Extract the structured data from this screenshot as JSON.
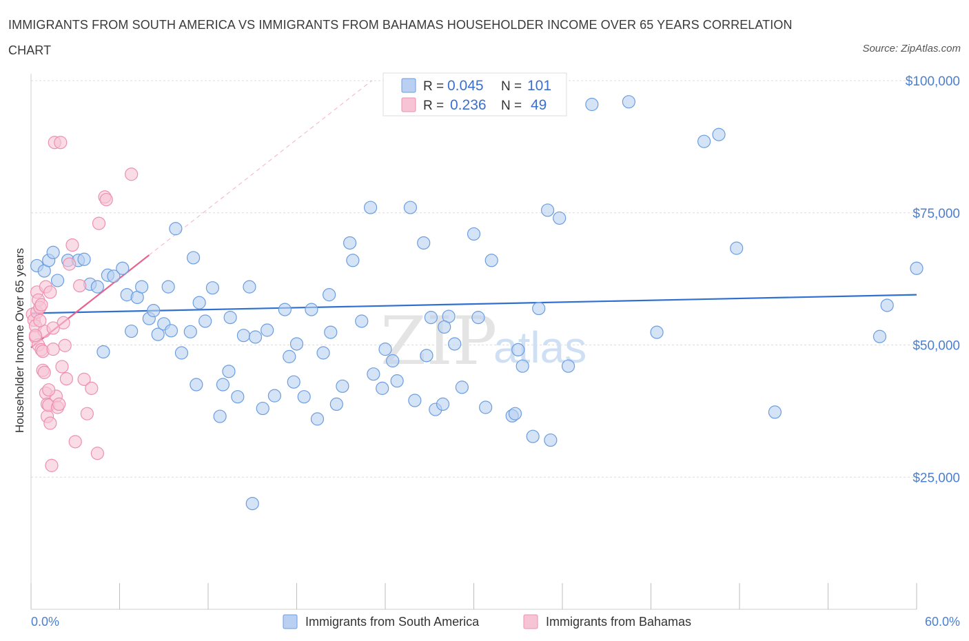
{
  "title": "IMMIGRANTS FROM SOUTH AMERICA VS IMMIGRANTS FROM BAHAMAS HOUSEHOLDER INCOME OVER 65 YEARS CORRELATION CHART",
  "source": "Source: ZipAtlas.com",
  "watermark": {
    "zip": "ZIP",
    "atlas": "atlas"
  },
  "colors": {
    "blue": "#6a9de0",
    "blue_fill": "#b9d0f2",
    "pink": "#ee8fb0",
    "pink_fill": "#f7c4d5",
    "blue_line": "#2f6fcf",
    "pink_line": "#e8628e"
  },
  "legend": {
    "rows": [
      {
        "r_label": "R =",
        "r_value": "0.045",
        "n_label": "N =",
        "n_value": "101"
      },
      {
        "r_label": "R =",
        "r_value": "0.236",
        "n_label": "N =",
        "n_value": "49"
      }
    ]
  },
  "bottom_legend": [
    "Immigrants from South America",
    "Immigrants from Bahamas"
  ],
  "chart_data": {
    "type": "scatter",
    "xlabel": "",
    "ylabel": "Householder Income Over 65 years",
    "xlim": [
      0,
      60
    ],
    "ylim": [
      0,
      100000
    ],
    "x_tick_labels": [
      "0.0%",
      "60.0%"
    ],
    "y_ticks": [
      {
        "value": 100000,
        "label": "$100,000"
      },
      {
        "value": 75000,
        "label": "$75,000"
      },
      {
        "value": 50000,
        "label": "$50,000"
      },
      {
        "value": 25000,
        "label": "$25,000"
      }
    ],
    "grid": true,
    "legend_position": "top-center",
    "series": [
      {
        "name": "Immigrants from South America",
        "trend": {
          "x": [
            0,
            60
          ],
          "y": [
            56000,
            59500
          ]
        },
        "points": [
          [
            0.4,
            65000
          ],
          [
            0.9,
            64000
          ],
          [
            1.2,
            66000
          ],
          [
            1.5,
            67500
          ],
          [
            1.8,
            62200
          ],
          [
            2.5,
            66000
          ],
          [
            3.2,
            66000
          ],
          [
            3.6,
            66200
          ],
          [
            4.0,
            61500
          ],
          [
            4.5,
            61000
          ],
          [
            5.2,
            63200
          ],
          [
            5.6,
            63000
          ],
          [
            6.2,
            64500
          ],
          [
            6.5,
            59500
          ],
          [
            7.2,
            59000
          ],
          [
            7.5,
            61000
          ],
          [
            8.0,
            55000
          ],
          [
            8.3,
            56500
          ],
          [
            8.6,
            52000
          ],
          [
            9.0,
            54000
          ],
          [
            9.3,
            61000
          ],
          [
            9.8,
            72000
          ],
          [
            10.2,
            48500
          ],
          [
            10.8,
            52500
          ],
          [
            11.0,
            66500
          ],
          [
            11.4,
            58000
          ],
          [
            11.8,
            54500
          ],
          [
            12.3,
            60800
          ],
          [
            12.8,
            36500
          ],
          [
            13.0,
            42500
          ],
          [
            13.5,
            55200
          ],
          [
            14.0,
            40200
          ],
          [
            14.4,
            51800
          ],
          [
            14.8,
            61000
          ],
          [
            15.2,
            51500
          ],
          [
            15.7,
            38000
          ],
          [
            16.0,
            52800
          ],
          [
            16.5,
            40400
          ],
          [
            17.2,
            56700
          ],
          [
            17.5,
            47800
          ],
          [
            18.0,
            50200
          ],
          [
            18.5,
            40200
          ],
          [
            19.0,
            56700
          ],
          [
            19.4,
            36000
          ],
          [
            19.8,
            48500
          ],
          [
            20.2,
            59500
          ],
          [
            20.7,
            38800
          ],
          [
            21.1,
            42200
          ],
          [
            21.6,
            69300
          ],
          [
            21.8,
            66000
          ],
          [
            22.4,
            54500
          ],
          [
            23.0,
            76000
          ],
          [
            23.2,
            44500
          ],
          [
            24.0,
            49200
          ],
          [
            24.5,
            47000
          ],
          [
            24.8,
            43200
          ],
          [
            25.7,
            76000
          ],
          [
            26.0,
            39500
          ],
          [
            26.6,
            69300
          ],
          [
            27.1,
            55200
          ],
          [
            27.4,
            37800
          ],
          [
            27.9,
            38800
          ],
          [
            28.3,
            55400
          ],
          [
            28.7,
            50200
          ],
          [
            29.2,
            42000
          ],
          [
            30.0,
            71000
          ],
          [
            30.3,
            55200
          ],
          [
            30.8,
            38200
          ],
          [
            31.2,
            66000
          ],
          [
            32.0,
            95000
          ],
          [
            32.6,
            36600
          ],
          [
            32.8,
            37000
          ],
          [
            33.0,
            49100
          ],
          [
            33.3,
            46000
          ],
          [
            34.0,
            32700
          ],
          [
            34.4,
            56900
          ],
          [
            35.0,
            75500
          ],
          [
            35.2,
            32000
          ],
          [
            35.8,
            74000
          ],
          [
            36.4,
            46000
          ],
          [
            38.0,
            95500
          ],
          [
            40.5,
            96000
          ],
          [
            42.4,
            52400
          ],
          [
            45.6,
            88500
          ],
          [
            46.6,
            89800
          ],
          [
            47.8,
            68300
          ],
          [
            50.4,
            37300
          ],
          [
            57.5,
            51600
          ],
          [
            58.0,
            57500
          ],
          [
            60.0,
            64500
          ],
          [
            15.0,
            20000
          ],
          [
            9.5,
            52700
          ],
          [
            13.4,
            45000
          ],
          [
            11.2,
            42500
          ],
          [
            17.8,
            43000
          ],
          [
            23.8,
            41800
          ],
          [
            28.0,
            53400
          ],
          [
            20.3,
            52400
          ],
          [
            26.8,
            48000
          ],
          [
            6.8,
            52600
          ],
          [
            4.9,
            48700
          ]
        ]
      },
      {
        "name": "Immigrants from Bahamas",
        "trend": {
          "x": [
            0,
            8
          ],
          "y": [
            49500,
            67000
          ]
        },
        "points": [
          [
            0.1,
            55800
          ],
          [
            0.2,
            54700
          ],
          [
            0.3,
            53600
          ],
          [
            0.3,
            51500
          ],
          [
            0.4,
            56200
          ],
          [
            0.4,
            60000
          ],
          [
            0.5,
            50000
          ],
          [
            0.5,
            58500
          ],
          [
            0.6,
            57100
          ],
          [
            0.7,
            49100
          ],
          [
            0.8,
            48800
          ],
          [
            0.8,
            45200
          ],
          [
            0.9,
            52600
          ],
          [
            1.0,
            61000
          ],
          [
            1.0,
            40900
          ],
          [
            1.1,
            38800
          ],
          [
            1.1,
            36500
          ],
          [
            1.2,
            38600
          ],
          [
            1.3,
            35200
          ],
          [
            1.3,
            60000
          ],
          [
            1.4,
            27200
          ],
          [
            1.5,
            49200
          ],
          [
            1.6,
            88300
          ],
          [
            1.7,
            40300
          ],
          [
            1.8,
            38200
          ],
          [
            1.9,
            38800
          ],
          [
            2.0,
            88300
          ],
          [
            2.2,
            54200
          ],
          [
            2.3,
            49900
          ],
          [
            2.4,
            43600
          ],
          [
            2.6,
            65300
          ],
          [
            2.8,
            68900
          ],
          [
            3.0,
            31700
          ],
          [
            3.3,
            61200
          ],
          [
            3.6,
            43500
          ],
          [
            3.8,
            37000
          ],
          [
            4.1,
            41800
          ],
          [
            4.5,
            29500
          ],
          [
            4.6,
            73000
          ],
          [
            5.0,
            78000
          ],
          [
            5.1,
            77500
          ],
          [
            6.8,
            82300
          ],
          [
            0.9,
            44800
          ],
          [
            1.2,
            41500
          ],
          [
            0.6,
            54600
          ],
          [
            1.5,
            53200
          ],
          [
            2.1,
            45900
          ],
          [
            0.3,
            51800
          ],
          [
            0.7,
            57600
          ]
        ]
      }
    ]
  }
}
